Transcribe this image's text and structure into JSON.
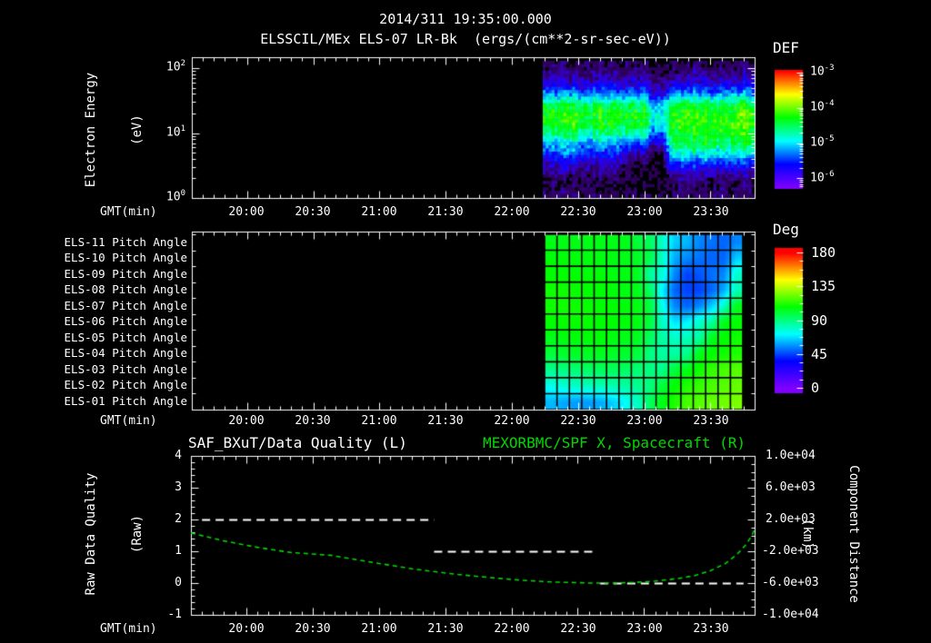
{
  "title": {
    "datetime": "2014/311 19:35:00.000",
    "instrument": "ELSSCIL/MEx ELS-07 LR-Bk  (ergs/(cm**2-sr-sec-eV))"
  },
  "xaxis": {
    "label": "GMT(min)",
    "ticks": [
      "20:00",
      "20:30",
      "21:00",
      "21:30",
      "22:00",
      "22:30",
      "23:00",
      "23:30"
    ]
  },
  "spectrogram_panel": {
    "ylabel_line1": "Electron Energy",
    "ylabel_line2": "(eV)",
    "yticks": [
      {
        "m": "10",
        "e": "2"
      },
      {
        "m": "10",
        "e": "1"
      },
      {
        "m": "10",
        "e": "0"
      }
    ],
    "colorbar": {
      "title": "DEF",
      "ticks": [
        {
          "m": "10",
          "e": "-3"
        },
        {
          "m": "10",
          "e": "-4"
        },
        {
          "m": "10",
          "e": "-5"
        },
        {
          "m": "10",
          "e": "-6"
        }
      ]
    }
  },
  "pitch_panel": {
    "row_labels": [
      "ELS-11 Pitch Angle",
      "ELS-10 Pitch Angle",
      "ELS-09 Pitch Angle",
      "ELS-08 Pitch Angle",
      "ELS-07 Pitch Angle",
      "ELS-06 Pitch Angle",
      "ELS-05 Pitch Angle",
      "ELS-04 Pitch Angle",
      "ELS-03 Pitch Angle",
      "ELS-02 Pitch Angle",
      "ELS-01 Pitch Angle"
    ],
    "colorbar": {
      "title": "Deg",
      "ticks": [
        "180",
        "135",
        "90",
        "45",
        "0"
      ]
    }
  },
  "quality_panel": {
    "title_left": "SAF_BXuT/Data Quality (L)",
    "title_right": "MEXORBMC/SPF X, Spacecraft (R)",
    "ylabel_left_line1": "Raw Data Quality",
    "ylabel_left_line2": "(Raw)",
    "ylabel_right_line1": "Component Distance",
    "ylabel_right_line2": "(km)",
    "yticks_left": [
      "4",
      "3",
      "2",
      "1",
      "0",
      "-1"
    ],
    "yticks_right": [
      "1.0e+04",
      "6.0e+03",
      "2.0e+03",
      "-2.0e+03",
      "-6.0e+03",
      "-1.0e+04"
    ]
  },
  "colors": {
    "background": "#000000",
    "text": "#ffffff",
    "accent_green": "#00d800",
    "grid_line": "#000000"
  },
  "chart_data": [
    {
      "type": "heatmap",
      "name": "electron-energy-spectrogram",
      "title": "ELSSCIL/MEx ELS-07 LR-Bk",
      "units": "ergs/(cm**2-sr-sec-eV)",
      "x_axis": {
        "label": "GMT(min)",
        "start": "19:35",
        "end": "23:50",
        "data_start": "22:14",
        "major_tick_min": 30,
        "minor_tick_min": 5
      },
      "y_axis": {
        "label": "Electron Energy (eV)",
        "scale": "log",
        "range": [
          1,
          150
        ]
      },
      "color_scale": {
        "label": "DEF",
        "log10_range": [
          -6.25,
          -2.95
        ]
      },
      "log10_flux_grid": [
        [
          -6.3,
          -6.25,
          -6.3,
          -6.35,
          -6.3,
          -6.25,
          -6.3,
          -6.3,
          -6.35,
          -6.3,
          -6.25,
          -6.3,
          -6.45,
          -6.4,
          -6.3,
          -6.35,
          -6.3,
          -6.25,
          -6.3,
          -6.35,
          -6.3,
          -6.3,
          -6.25,
          -6.3
        ],
        [
          -6.05,
          -6.1,
          -6.0,
          -6.1,
          -6.15,
          -6.05,
          -6.1,
          -6.0,
          -6.1,
          -6.15,
          -6.1,
          -6.05,
          -6.3,
          -6.25,
          -6.1,
          -6.05,
          -6.1,
          -6.0,
          -6.05,
          -6.1,
          -6.05,
          -6.1,
          -6.0,
          -6.05
        ],
        [
          -5.75,
          -5.8,
          -5.7,
          -5.75,
          -5.85,
          -5.8,
          -5.7,
          -5.75,
          -5.8,
          -5.85,
          -5.8,
          -5.75,
          -6.05,
          -6.0,
          -5.8,
          -5.75,
          -5.7,
          -5.75,
          -5.7,
          -5.75,
          -5.8,
          -5.75,
          -5.7,
          -5.75
        ],
        [
          -5.15,
          -5.2,
          -5.1,
          -5.05,
          -5.2,
          -5.25,
          -5.1,
          -5.15,
          -5.2,
          -5.25,
          -5.3,
          -5.25,
          -5.8,
          -5.75,
          -5.3,
          -5.2,
          -5.15,
          -5.1,
          -5.15,
          -5.2,
          -5.15,
          -5.1,
          -5.05,
          -5.15
        ],
        [
          -4.5,
          -4.55,
          -4.45,
          -4.4,
          -4.55,
          -4.6,
          -4.45,
          -4.5,
          -4.55,
          -4.6,
          -4.55,
          -4.5,
          -5.1,
          -5.05,
          -4.5,
          -4.45,
          -4.4,
          -4.45,
          -4.4,
          -4.45,
          -4.5,
          -4.45,
          -4.35,
          -4.45
        ],
        [
          -4.25,
          -4.3,
          -4.2,
          -4.15,
          -4.35,
          -4.4,
          -4.2,
          -4.25,
          -4.3,
          -4.35,
          -4.3,
          -4.35,
          -4.9,
          -4.85,
          -4.3,
          -4.25,
          -4.2,
          -4.2,
          -4.15,
          -4.2,
          -4.25,
          -4.2,
          -3.95,
          -4.2
        ],
        [
          -4.3,
          -4.35,
          -4.25,
          -4.2,
          -4.4,
          -4.45,
          -4.25,
          -4.3,
          -4.35,
          -4.4,
          -4.35,
          -4.4,
          -5.0,
          -4.95,
          -4.25,
          -4.2,
          -4.15,
          -4.2,
          -4.15,
          -4.2,
          -4.25,
          -4.2,
          -4.0,
          -4.25
        ],
        [
          -4.6,
          -4.65,
          -4.55,
          -4.5,
          -4.7,
          -4.75,
          -4.55,
          -4.6,
          -4.65,
          -4.7,
          -4.75,
          -4.7,
          -5.4,
          -5.35,
          -4.4,
          -4.3,
          -4.25,
          -4.3,
          -4.25,
          -4.3,
          -4.35,
          -4.3,
          -4.2,
          -4.35
        ],
        [
          -5.1,
          -5.15,
          -5.0,
          -4.95,
          -5.2,
          -5.25,
          -5.05,
          -5.1,
          -5.2,
          -5.3,
          -5.35,
          -5.3,
          -6.0,
          -5.95,
          -4.6,
          -4.5,
          -4.4,
          -4.45,
          -4.4,
          -4.5,
          -4.55,
          -4.5,
          -4.4,
          -4.55
        ],
        [
          -5.5,
          -5.45,
          -5.3,
          -5.25,
          -5.5,
          -5.55,
          -5.4,
          -5.45,
          -5.6,
          -5.9,
          -6.1,
          -6.0,
          -6.45,
          -6.4,
          -4.95,
          -4.85,
          -4.8,
          -4.85,
          -4.8,
          -4.9,
          -4.95,
          -4.9,
          -4.85,
          -5.0
        ],
        [
          -5.9,
          -5.85,
          -5.8,
          -5.75,
          -5.9,
          -5.95,
          -5.85,
          -5.9,
          -6.0,
          -6.2,
          -6.35,
          -6.3,
          -6.5,
          -6.45,
          -5.5,
          -5.45,
          -5.4,
          -5.5,
          -5.45,
          -5.5,
          -5.55,
          -5.5,
          -5.45,
          -5.6
        ],
        [
          -6.15,
          -6.1,
          -6.05,
          -6.1,
          -6.2,
          -6.15,
          -6.1,
          -6.15,
          -6.2,
          -6.35,
          -6.45,
          -6.4,
          -6.5,
          -6.5,
          -5.95,
          -5.9,
          -5.85,
          -5.95,
          -5.9,
          -5.95,
          -6.0,
          -5.95,
          -5.9,
          -6.0
        ],
        [
          -6.35,
          -6.3,
          -6.35,
          -6.4,
          -6.35,
          -6.3,
          -6.35,
          -6.4,
          -6.35,
          -6.45,
          -6.5,
          -6.45,
          -6.55,
          -6.5,
          -6.25,
          -6.2,
          -6.25,
          -6.3,
          -6.25,
          -6.3,
          -6.25,
          -6.3,
          -6.25,
          -6.3
        ],
        [
          -6.3,
          -6.25,
          -6.3,
          -6.35,
          -6.3,
          -6.25,
          -6.3,
          -6.35,
          -6.3,
          -6.35,
          -6.4,
          -6.35,
          -6.45,
          -6.4,
          -6.25,
          -6.2,
          -6.25,
          -6.3,
          -6.25,
          -6.2,
          -6.25,
          -6.3,
          -6.2,
          -6.25
        ]
      ]
    },
    {
      "type": "heatmap",
      "name": "pitch-angle-grid",
      "rows": [
        "ELS-11",
        "ELS-10",
        "ELS-09",
        "ELS-08",
        "ELS-07",
        "ELS-06",
        "ELS-05",
        "ELS-04",
        "ELS-03",
        "ELS-02",
        "ELS-01"
      ],
      "x_axis": {
        "label": "GMT(min)",
        "data_start": "22:15",
        "data_end": "23:44"
      },
      "color_scale": {
        "label": "Deg",
        "range": [
          0,
          180
        ]
      },
      "degrees_grid": [
        [
          105,
          105,
          105,
          105,
          105,
          105,
          105,
          100,
          95,
          80,
          65,
          62,
          55,
          52,
          50,
          55
        ],
        [
          107,
          107,
          107,
          106,
          106,
          106,
          105,
          103,
          98,
          80,
          60,
          55,
          52,
          50,
          50,
          65
        ],
        [
          108,
          108,
          108,
          107,
          107,
          106,
          106,
          104,
          85,
          78,
          55,
          45,
          48,
          52,
          55,
          80
        ],
        [
          110,
          110,
          109,
          108,
          108,
          107,
          106,
          105,
          95,
          70,
          50,
          45,
          45,
          50,
          60,
          82
        ],
        [
          110,
          110,
          110,
          109,
          108,
          108,
          107,
          106,
          100,
          75,
          55,
          50,
          55,
          65,
          80,
          105
        ],
        [
          108,
          109,
          109,
          109,
          108,
          108,
          107,
          106,
          100,
          80,
          68,
          70,
          80,
          85,
          105,
          108
        ],
        [
          105,
          106,
          107,
          107,
          107,
          106,
          105,
          104,
          95,
          85,
          80,
          82,
          85,
          105,
          108,
          110
        ],
        [
          100,
          102,
          103,
          104,
          104,
          103,
          102,
          100,
          90,
          85,
          85,
          88,
          105,
          108,
          110,
          112
        ],
        [
          88,
          90,
          92,
          94,
          95,
          95,
          94,
          92,
          90,
          88,
          100,
          105,
          110,
          115,
          118,
          120
        ],
        [
          75,
          78,
          80,
          82,
          83,
          84,
          85,
          88,
          90,
          100,
          108,
          112,
          115,
          118,
          120,
          122
        ],
        [
          62,
          60,
          58,
          58,
          60,
          65,
          72,
          80,
          95,
          105,
          112,
          118,
          120,
          122,
          124,
          125
        ]
      ]
    },
    {
      "type": "line",
      "name": "data-quality-and-spacecraft-x",
      "y_left": {
        "label": "Raw Data Quality (Raw)",
        "range": [
          -1,
          4
        ]
      },
      "y_right": {
        "label": "Component Distance (km)",
        "range": [
          -10000,
          10000
        ]
      },
      "series": [
        {
          "name": "SAF_BXuT/Data Quality (L)",
          "axis": "left",
          "style": "dashed",
          "color": "#ffffff",
          "segments": [
            {
              "value": 2,
              "start_min": 5,
              "end_min": 110
            },
            {
              "value": 1,
              "start_min": 110,
              "end_min": 183
            },
            {
              "value": 0,
              "start_min": 185,
              "end_min": 250
            }
          ]
        },
        {
          "name": "MEXORBMC/SPF X, Spacecraft (R)",
          "axis": "right",
          "style": "dashed",
          "color": "#00d800",
          "points_min_km": [
            [
              0,
              300
            ],
            [
              15,
              -700
            ],
            [
              30,
              -1500
            ],
            [
              45,
              -2150
            ],
            [
              63,
              -2500
            ],
            [
              80,
              -3300
            ],
            [
              100,
              -4200
            ],
            [
              120,
              -4900
            ],
            [
              135,
              -5300
            ],
            [
              150,
              -5650
            ],
            [
              165,
              -5880
            ],
            [
              180,
              -5990
            ],
            [
              190,
              -6000
            ],
            [
              200,
              -5930
            ],
            [
              210,
              -5750
            ],
            [
              220,
              -5450
            ],
            [
              228,
              -5050
            ],
            [
              235,
              -4450
            ],
            [
              242,
              -3500
            ],
            [
              247,
              -2400
            ],
            [
              251,
              -1200
            ],
            [
              254,
              100
            ],
            [
              255,
              800
            ]
          ]
        }
      ]
    }
  ]
}
